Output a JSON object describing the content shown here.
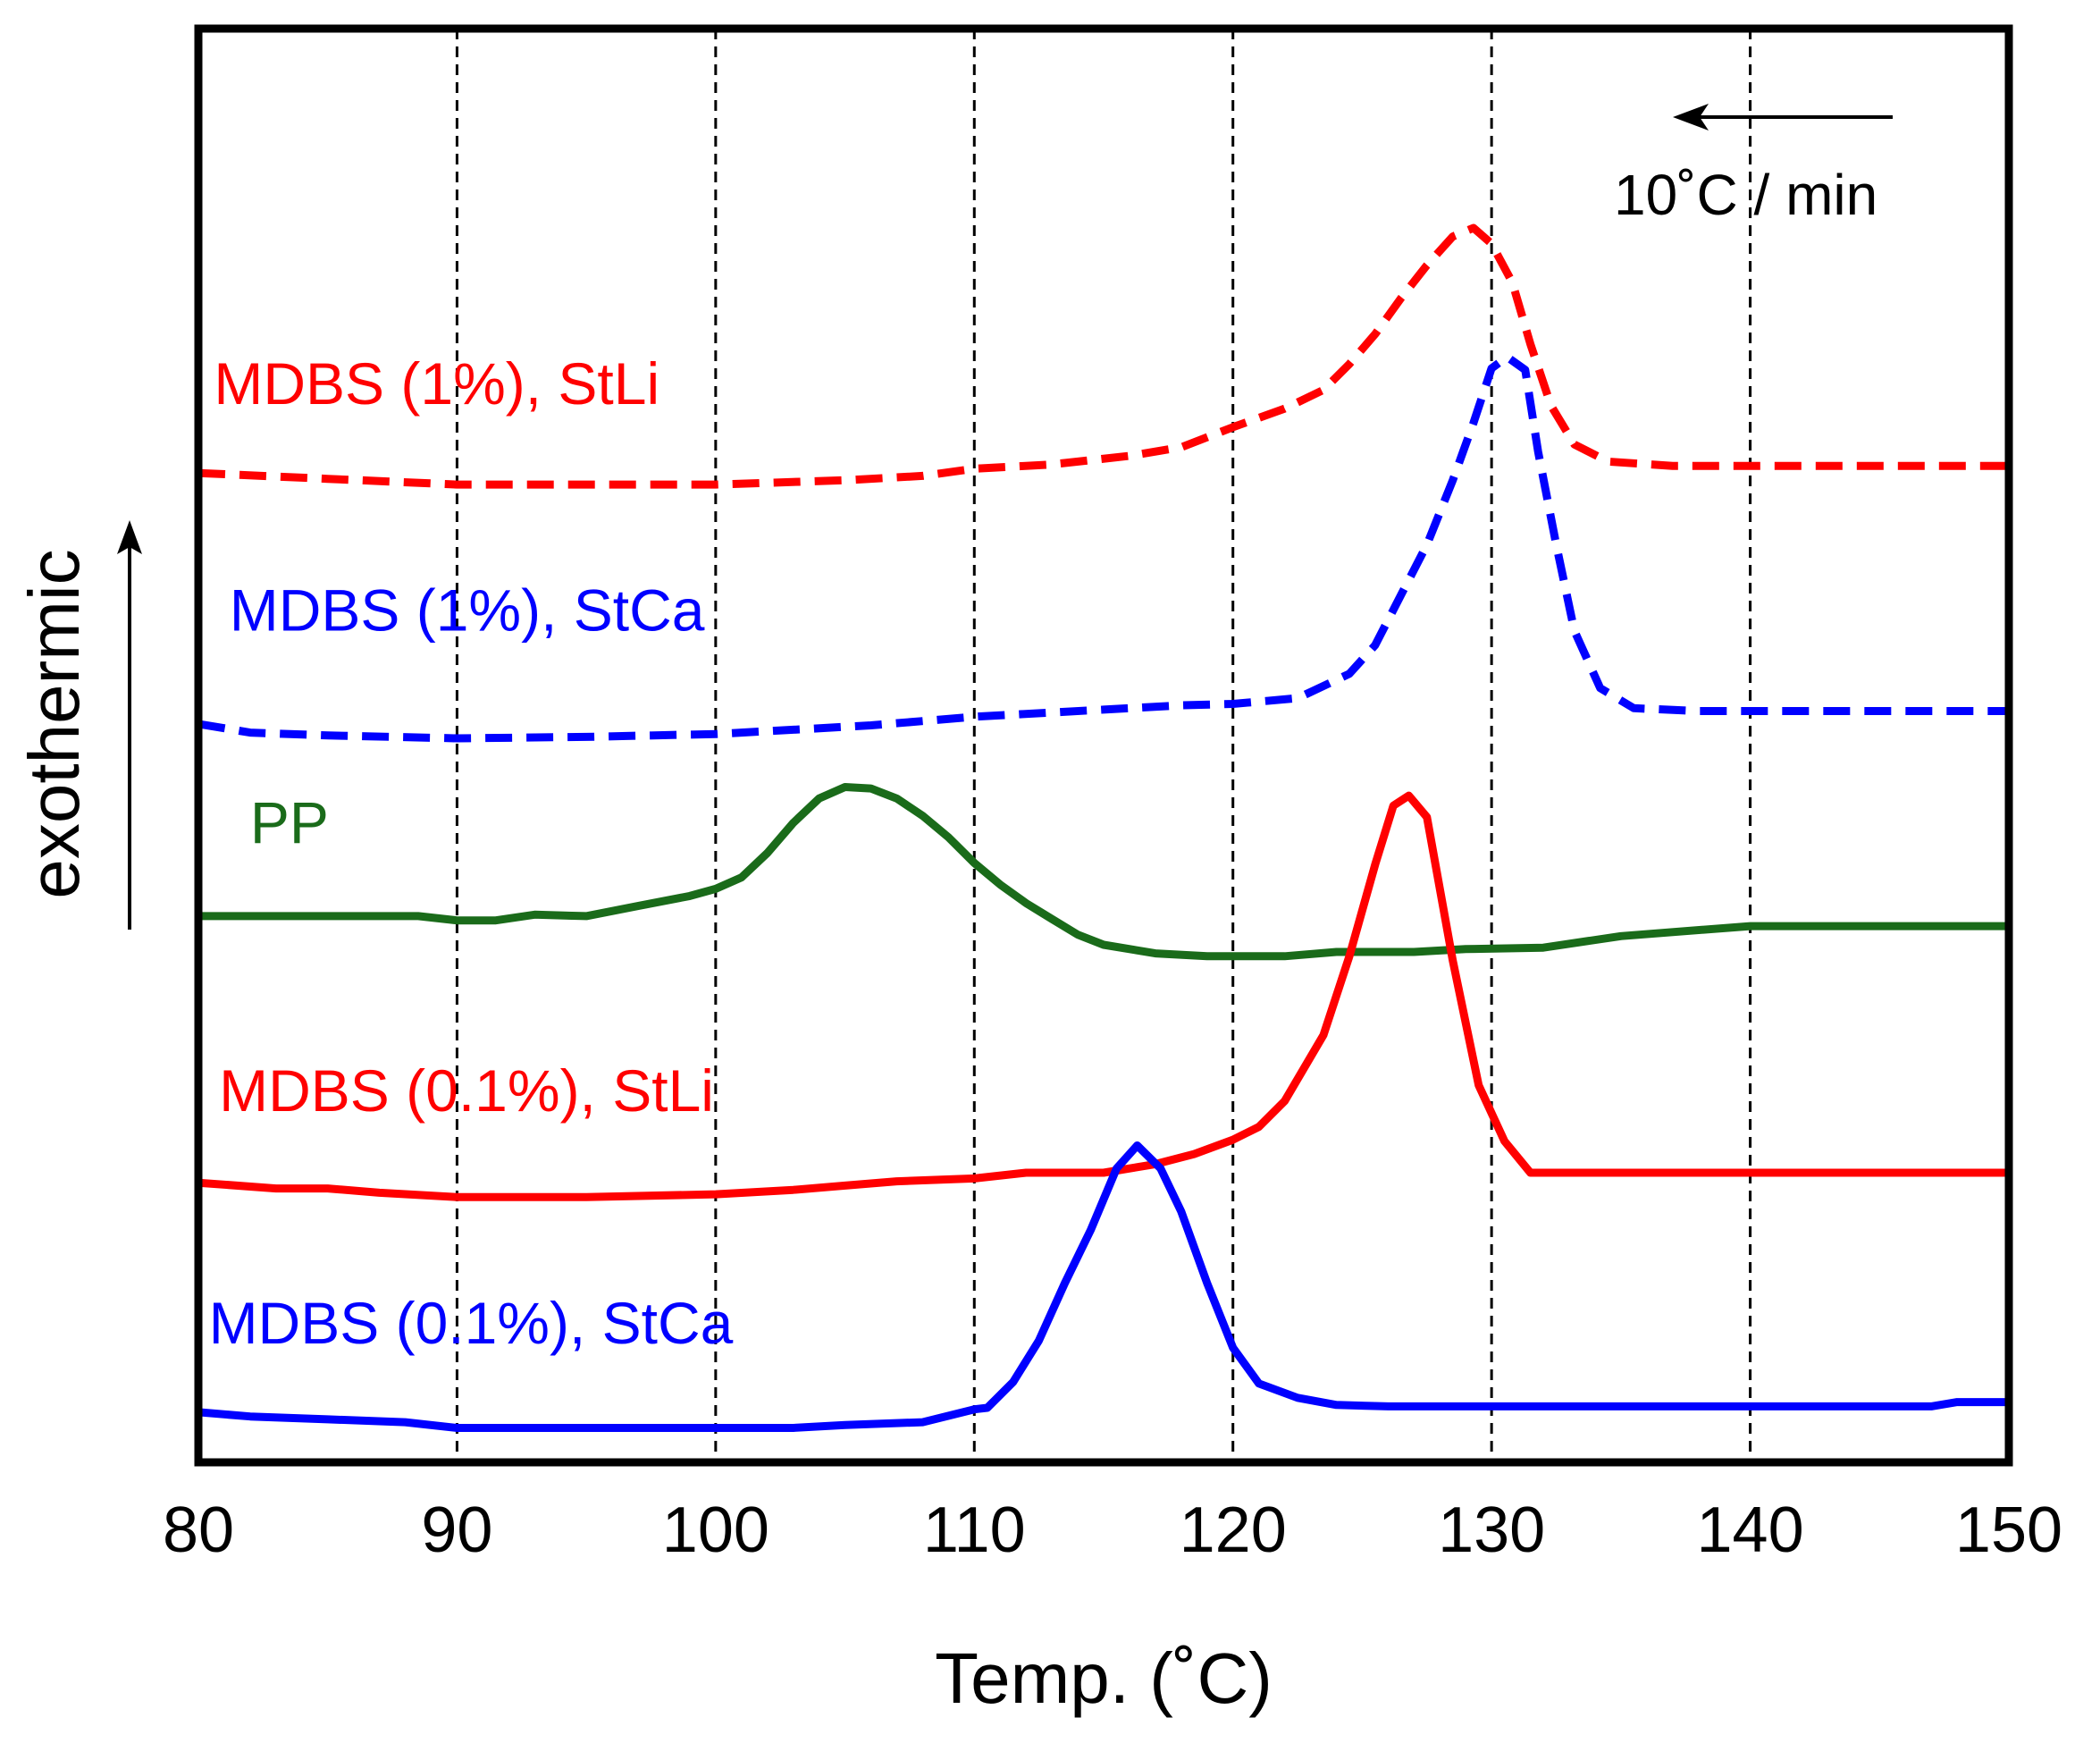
{
  "chart_data": {
    "type": "line",
    "title": "",
    "xlabel": "Temp. (˚C)",
    "ylabel": "exothermic",
    "xlim": [
      80,
      150
    ],
    "ylim": [
      0,
      100
    ],
    "xticks": [
      "80",
      "90",
      "100",
      "110",
      "120",
      "130",
      "140",
      "150"
    ],
    "xtick_values": [
      80,
      90,
      100,
      110,
      120,
      130,
      140,
      150
    ],
    "vertical_grid": [
      90,
      100,
      110,
      120,
      130,
      140
    ],
    "y_ticks_shown": false,
    "rate_annotation": "10˚C / min",
    "rate_arrow_direction": "left",
    "ylabel_arrow_direction": "up",
    "series": [
      {
        "name": "MDBS (1%), StLi",
        "color": "#ff0000",
        "dashed": true,
        "points": [
          [
            80,
            69.0
          ],
          [
            85,
            68.6
          ],
          [
            90,
            68.2
          ],
          [
            95,
            68.2
          ],
          [
            100,
            68.2
          ],
          [
            105,
            68.5
          ],
          [
            108,
            68.8
          ],
          [
            110,
            69.3
          ],
          [
            113,
            69.6
          ],
          [
            116,
            70.2
          ],
          [
            118,
            70.8
          ],
          [
            120,
            72.2
          ],
          [
            122,
            73.5
          ],
          [
            123.5,
            74.8
          ],
          [
            124.5,
            76.6
          ],
          [
            125.5,
            78.7
          ],
          [
            126.5,
            81.2
          ],
          [
            127.5,
            83.5
          ],
          [
            128.5,
            85.5
          ],
          [
            129.3,
            86.1
          ],
          [
            130,
            85.0
          ],
          [
            130.8,
            82.3
          ],
          [
            131.5,
            78.0
          ],
          [
            132.3,
            73.7
          ],
          [
            133.2,
            71.0
          ],
          [
            134.5,
            69.8
          ],
          [
            137,
            69.5
          ],
          [
            140,
            69.5
          ],
          [
            145,
            69.5
          ],
          [
            150,
            69.5
          ]
        ]
      },
      {
        "name": "MDBS (1%), StCa",
        "color": "#0000ff",
        "dashed": true,
        "points": [
          [
            80,
            51.5
          ],
          [
            82,
            50.9
          ],
          [
            85,
            50.7
          ],
          [
            90,
            50.5
          ],
          [
            95,
            50.6
          ],
          [
            100,
            50.8
          ],
          [
            103,
            51.1
          ],
          [
            106,
            51.4
          ],
          [
            110,
            52.0
          ],
          [
            115,
            52.5
          ],
          [
            118,
            52.8
          ],
          [
            120,
            52.9
          ],
          [
            122.5,
            53.3
          ],
          [
            124.5,
            55.0
          ],
          [
            125.5,
            57.0
          ],
          [
            126.5,
            60.5
          ],
          [
            127.5,
            64.0
          ],
          [
            128.5,
            68.5
          ],
          [
            129.3,
            72.5
          ],
          [
            130,
            76.3
          ],
          [
            130.6,
            77.1
          ],
          [
            131.3,
            76.2
          ],
          [
            131.8,
            70.5
          ],
          [
            132.5,
            64.0
          ],
          [
            133.2,
            58.0
          ],
          [
            134.2,
            54.0
          ],
          [
            135.5,
            52.6
          ],
          [
            138,
            52.4
          ],
          [
            140,
            52.4
          ],
          [
            145,
            52.4
          ],
          [
            150,
            52.4
          ]
        ]
      },
      {
        "name": "PP",
        "color": "#1a6b1a",
        "dashed": false,
        "points": [
          [
            80,
            38.1
          ],
          [
            85,
            38.1
          ],
          [
            88.5,
            38.1
          ],
          [
            90,
            37.8
          ],
          [
            91.5,
            37.8
          ],
          [
            93,
            38.2
          ],
          [
            95,
            38.1
          ],
          [
            97,
            38.8
          ],
          [
            99,
            39.5
          ],
          [
            100,
            40.0
          ],
          [
            101,
            40.8
          ],
          [
            102,
            42.5
          ],
          [
            103,
            44.6
          ],
          [
            104,
            46.3
          ],
          [
            105,
            47.1
          ],
          [
            106,
            47.0
          ],
          [
            107,
            46.3
          ],
          [
            108,
            45.1
          ],
          [
            109,
            43.6
          ],
          [
            110,
            41.8
          ],
          [
            111,
            40.3
          ],
          [
            112,
            39.0
          ],
          [
            113,
            37.9
          ],
          [
            114,
            36.8
          ],
          [
            115,
            36.1
          ],
          [
            117,
            35.5
          ],
          [
            119,
            35.3
          ],
          [
            122,
            35.3
          ],
          [
            124,
            35.6
          ],
          [
            127,
            35.6
          ],
          [
            129,
            35.8
          ],
          [
            132,
            35.9
          ],
          [
            135,
            36.7
          ],
          [
            140,
            37.4
          ],
          [
            145,
            37.4
          ],
          [
            150,
            37.4
          ]
        ]
      },
      {
        "name": "MDBS (0.1%), StLi",
        "color": "#ff0000",
        "dashed": false,
        "points": [
          [
            80,
            19.5
          ],
          [
            83,
            19.1
          ],
          [
            85,
            19.1
          ],
          [
            87,
            18.8
          ],
          [
            90,
            18.5
          ],
          [
            95,
            18.5
          ],
          [
            100,
            18.7
          ],
          [
            103,
            19.0
          ],
          [
            105,
            19.3
          ],
          [
            107,
            19.6
          ],
          [
            110,
            19.8
          ],
          [
            112,
            20.2
          ],
          [
            115,
            20.2
          ],
          [
            117,
            20.8
          ],
          [
            118.5,
            21.5
          ],
          [
            120,
            22.5
          ],
          [
            121,
            23.4
          ],
          [
            122,
            25.2
          ],
          [
            123.5,
            29.8
          ],
          [
            124.5,
            35.3
          ],
          [
            125.5,
            41.7
          ],
          [
            126.2,
            45.8
          ],
          [
            126.8,
            46.5
          ],
          [
            127.5,
            45.0
          ],
          [
            128.5,
            35.0
          ],
          [
            129.5,
            26.3
          ],
          [
            130.5,
            22.4
          ],
          [
            131.5,
            20.2
          ],
          [
            133,
            20.2
          ],
          [
            140,
            20.2
          ],
          [
            150,
            20.2
          ]
        ]
      },
      {
        "name": "MDBS (0.1%), StCa",
        "color": "#0000ff",
        "dashed": false,
        "points": [
          [
            80,
            3.5
          ],
          [
            82,
            3.2
          ],
          [
            85,
            3.0
          ],
          [
            88,
            2.8
          ],
          [
            90,
            2.4
          ],
          [
            95,
            2.4
          ],
          [
            100,
            2.4
          ],
          [
            103,
            2.4
          ],
          [
            105,
            2.6
          ],
          [
            108,
            2.8
          ],
          [
            110,
            3.7
          ],
          [
            110.5,
            3.8
          ],
          [
            111.5,
            5.6
          ],
          [
            112.5,
            8.5
          ],
          [
            113.5,
            12.5
          ],
          [
            114.5,
            16.2
          ],
          [
            115.5,
            20.5
          ],
          [
            116.3,
            22.1
          ],
          [
            117.2,
            20.5
          ],
          [
            118,
            17.5
          ],
          [
            119,
            12.5
          ],
          [
            120,
            8.0
          ],
          [
            121,
            5.5
          ],
          [
            122.5,
            4.5
          ],
          [
            124,
            4.0
          ],
          [
            126,
            3.9
          ],
          [
            130,
            3.9
          ],
          [
            135,
            3.9
          ],
          [
            140,
            3.9
          ],
          [
            147,
            3.9
          ],
          [
            148,
            4.2
          ],
          [
            150,
            4.2
          ]
        ]
      }
    ],
    "labels": [
      {
        "text": "MDBS (1%), StLi",
        "color": "#ff0000",
        "x": 80.6,
        "y": 73.8
      },
      {
        "text": "MDBS (1%), StCa",
        "color": "#0000ff",
        "x": 81.2,
        "y": 58.0
      },
      {
        "text": "PP",
        "color": "#1a6b1a",
        "x": 82.0,
        "y": 43.2
      },
      {
        "text": "MDBS (0.1%), StLi",
        "color": "#ff0000",
        "x": 80.8,
        "y": 24.5
      },
      {
        "text": "MDBS (0.1%), StCa",
        "color": "#0000ff",
        "x": 80.4,
        "y": 8.3
      }
    ]
  }
}
